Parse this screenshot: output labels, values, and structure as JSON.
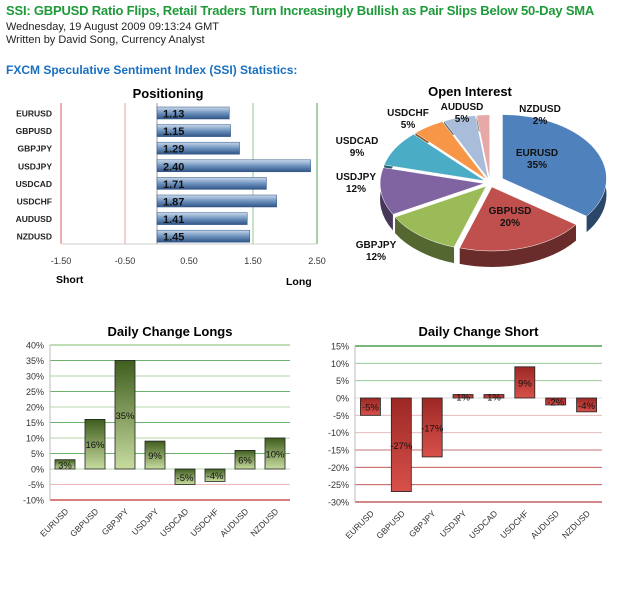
{
  "article": {
    "title": "SSI: GBPUSD Ratio Flips, Retail Traders Turn Increasingly Bullish as Pair Slips Below 50-Day SMA",
    "date": "Wednesday, 19 August 2009 09:13:24 GMT",
    "author": "Written by David Song, Currency Analyst",
    "section_heading": "FXCM Speculative Sentiment Index (SSI) Statistics:"
  },
  "chart_data": [
    {
      "type": "bar",
      "orientation": "horizontal",
      "title": "Positioning",
      "categories": [
        "EURUSD",
        "GBPUSD",
        "GBPJPY",
        "USDJPY",
        "USDCAD",
        "USDCHF",
        "AUDUSD",
        "NZDUSD"
      ],
      "values": [
        1.13,
        1.15,
        1.29,
        2.4,
        1.71,
        1.87,
        1.41,
        1.45
      ],
      "value_labels": [
        "1.13",
        "1.15",
        "1.29",
        "2.40",
        "1.71",
        "1.87",
        "1.41",
        "1.45"
      ],
      "xlim": [
        -1.5,
        2.5
      ],
      "xticks": [
        "-1.50",
        "-0.50",
        "0.50",
        "1.50",
        "2.50"
      ],
      "left_label": "Short",
      "right_label": "Long",
      "bar_color": "#4f78a8"
    },
    {
      "type": "pie",
      "title": "Open Interest",
      "categories": [
        "EURUSD",
        "GBPUSD",
        "GBPJPY",
        "USDJPY",
        "USDCAD",
        "USDCHF",
        "AUDUSD",
        "NZDUSD"
      ],
      "values": [
        35,
        20,
        12,
        12,
        9,
        5,
        5,
        2
      ],
      "value_labels": [
        "35%",
        "20%",
        "12%",
        "12%",
        "9%",
        "5%",
        "5%",
        "2%"
      ],
      "colors": [
        "#4f81bd",
        "#c0504d",
        "#9bbb59",
        "#8064a2",
        "#4bacc6",
        "#f79646",
        "#a9bcd9",
        "#e6a9a8"
      ]
    },
    {
      "type": "bar",
      "title": "Daily Change Longs",
      "categories": [
        "EURUSD",
        "GBPUSD",
        "GBPJPY",
        "USDJPY",
        "USDCAD",
        "USDCHF",
        "AUDUSD",
        "NZDUSD"
      ],
      "values": [
        3,
        16,
        35,
        9,
        -5,
        -4,
        6,
        10
      ],
      "value_labels": [
        "3%",
        "16%",
        "35%",
        "9%",
        "-5%",
        "-4%",
        "6%",
        "10%"
      ],
      "ylim": [
        -10,
        40
      ],
      "yticks": [
        "-10%",
        "-5%",
        "0%",
        "5%",
        "10%",
        "15%",
        "20%",
        "25%",
        "30%",
        "35%",
        "40%"
      ],
      "bar_color": "#6b8a3a"
    },
    {
      "type": "bar",
      "title": "Daily Change Short",
      "categories": [
        "EURUSD",
        "GBPUSD",
        "GBPJPY",
        "USDJPY",
        "USDCAD",
        "USDCHF",
        "AUDUSD",
        "NZDUSD"
      ],
      "values": [
        -5,
        -27,
        -17,
        1,
        1,
        9,
        -2,
        -4
      ],
      "value_labels": [
        "-5%",
        "-27%",
        "-17%",
        "1%",
        "1%",
        "9%",
        "-2%",
        "-4%"
      ],
      "ylim": [
        -30,
        15
      ],
      "yticks": [
        "-30%",
        "-25%",
        "-20%",
        "-15%",
        "-10%",
        "-5%",
        "0%",
        "5%",
        "10%",
        "15%"
      ],
      "bar_color": "#c9403c"
    }
  ]
}
